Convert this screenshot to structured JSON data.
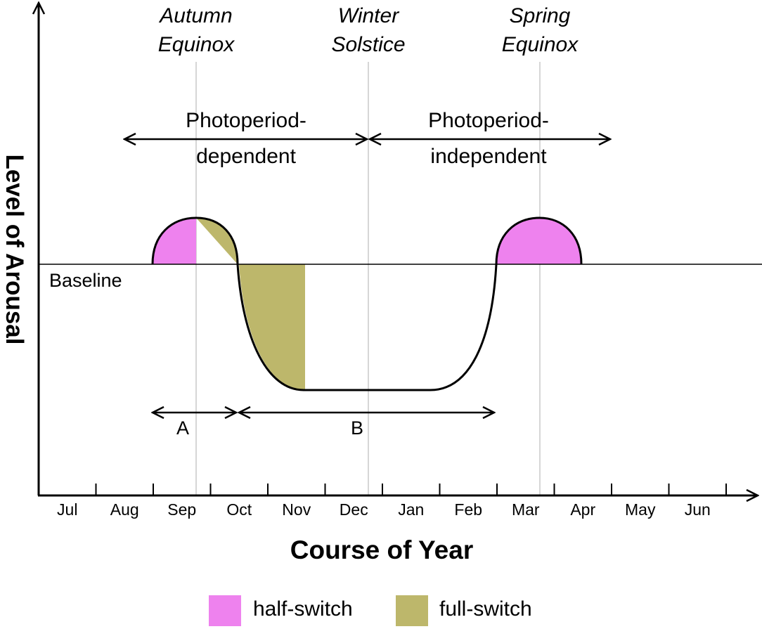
{
  "axes": {
    "y_label": "Level of Arousal",
    "x_label": "Course of Year",
    "months": [
      "Jul",
      "Aug",
      "Sep",
      "Oct",
      "Nov",
      "Dec",
      "Jan",
      "Feb",
      "Mar",
      "Apr",
      "May",
      "Jun"
    ]
  },
  "baseline_label": "Baseline",
  "events": [
    {
      "lines": [
        "Autumn",
        "Equinox"
      ]
    },
    {
      "lines": [
        "Winter",
        "Solstice"
      ]
    },
    {
      "lines": [
        "Spring",
        "Equinox"
      ]
    }
  ],
  "periods": [
    {
      "lines": [
        "Photoperiod-",
        "dependent"
      ]
    },
    {
      "lines": [
        "Photoperiod-",
        "independent"
      ]
    }
  ],
  "phases": [
    "A",
    "B"
  ],
  "legend": [
    {
      "label": "half-switch",
      "color": "#ee82ee"
    },
    {
      "label": "full-switch",
      "color": "#bdb76b"
    }
  ]
}
